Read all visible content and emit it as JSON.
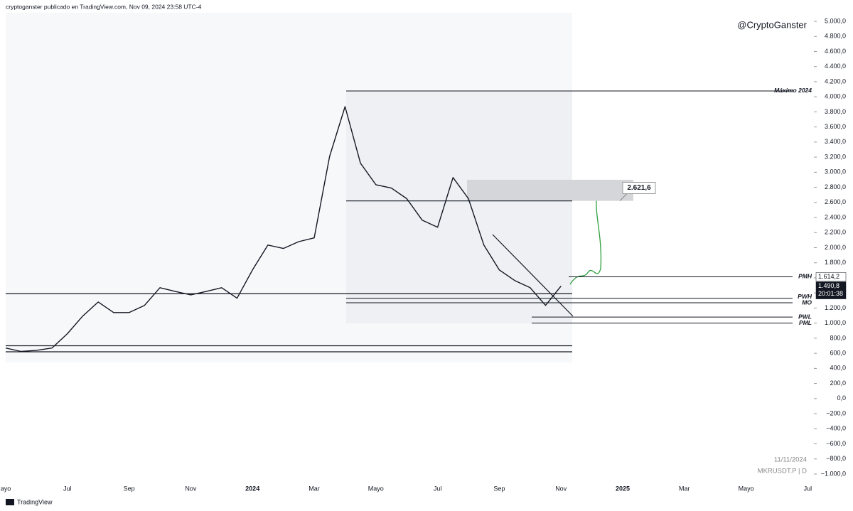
{
  "header": "cryptoganster publicado en TradingView.com, Nov 09, 2024 23:58 UTC-4",
  "watermark": "@CryptoGanster",
  "footer_date": "11/11/2024",
  "symbol": "MKRUSDT.P | D",
  "brand": "TradingView",
  "chart_data": {
    "type": "line",
    "categories": [
      "ayo",
      null,
      null,
      null,
      "Jul",
      null,
      null,
      null,
      "Sep",
      null,
      null,
      null,
      "Nov",
      null,
      null,
      null,
      "2024",
      null,
      null,
      null,
      "Mar",
      null,
      null,
      null,
      "Mayo",
      null,
      null,
      null,
      "Jul",
      null,
      null,
      null,
      "Sep",
      null,
      null,
      null,
      "Nov",
      null,
      null,
      null,
      "2025",
      null,
      null,
      null,
      "Mar",
      null,
      null,
      null,
      "Mayo",
      null,
      null,
      null,
      "Jul"
    ],
    "series": [
      {
        "name": "MKRUSDT.P",
        "color": "#131722",
        "values": [
          670,
          625,
          640,
          670,
          860,
          1095,
          1280,
          1140,
          1140,
          1235,
          1470,
          1420,
          1375,
          1420,
          1470,
          1330,
          1705,
          2035,
          1990,
          2080,
          2130,
          3210,
          3870,
          3120,
          2835,
          2790,
          2650,
          2365,
          2270,
          2930,
          2650,
          2035,
          1705,
          1565,
          1470,
          1235,
          1490.8,
          null,
          null,
          null,
          null,
          null,
          null,
          null,
          null,
          null,
          null,
          null,
          null,
          null,
          null,
          null,
          null
        ]
      }
    ],
    "ylim": [
      -1100,
      5150
    ],
    "yticks": [
      {
        "value": 5000,
        "label": "5.000,0"
      },
      {
        "value": 4800,
        "label": "4.800,0"
      },
      {
        "value": 4600,
        "label": "4.600,0"
      },
      {
        "value": 4400,
        "label": "4.400,0"
      },
      {
        "value": 4200,
        "label": "4.200,0"
      },
      {
        "value": 4000,
        "label": "4.000,0"
      },
      {
        "value": 3800,
        "label": "3.800,0"
      },
      {
        "value": 3600,
        "label": "3.600,0"
      },
      {
        "value": 3400,
        "label": "3.400,0"
      },
      {
        "value": 3200,
        "label": "3.200,0"
      },
      {
        "value": 3000,
        "label": "3.000,0"
      },
      {
        "value": 2800,
        "label": "2.800,0"
      },
      {
        "value": 2600,
        "label": "2.600,0"
      },
      {
        "value": 2400,
        "label": "2.400,0"
      },
      {
        "value": 2200,
        "label": "2.200,0"
      },
      {
        "value": 2000,
        "label": "2.000,0"
      },
      {
        "value": 1800,
        "label": "1.800,0"
      },
      {
        "value": 1600,
        "label": "1.600,0"
      },
      {
        "value": 1400,
        "label": "1.400,0"
      },
      {
        "value": 1200,
        "label": "1.200,0"
      },
      {
        "value": 1000,
        "label": "1.000,0"
      },
      {
        "value": 800,
        "label": "800,0"
      },
      {
        "value": 600,
        "label": "600,0"
      },
      {
        "value": 400,
        "label": "400,0"
      },
      {
        "value": 200,
        "label": "200,0"
      },
      {
        "value": 0,
        "label": "0,0"
      },
      {
        "value": -200,
        "label": "−200,0"
      },
      {
        "value": -400,
        "label": "−400,0"
      },
      {
        "value": -600,
        "label": "−600,0"
      },
      {
        "value": -800,
        "label": "−800,0"
      },
      {
        "value": -1000,
        "label": "−1.000,0"
      }
    ],
    "levels": [
      {
        "label": "Máximo 2024",
        "value": 4077
      },
      {
        "label": "PMH",
        "value": 1614.2
      },
      {
        "label": "PWH",
        "value": 1330
      },
      {
        "label": "MO",
        "value": 1270
      },
      {
        "label": "PWL",
        "value": 1080
      },
      {
        "label": "PML",
        "value": 1000
      }
    ],
    "lines": [
      1390,
      2620,
      700,
      620
    ],
    "zone": [
      2620,
      2900
    ],
    "annotation": {
      "value": 2621.6,
      "label": "2.621,6"
    },
    "price_labels": [
      {
        "value": 1614.2,
        "label": "1.614,2"
      },
      {
        "value": 1490.8,
        "label": "1.490,8"
      }
    ],
    "countdown": "20:01:38"
  }
}
